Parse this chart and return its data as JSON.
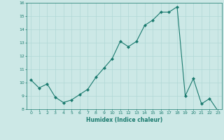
{
  "x": [
    0,
    1,
    2,
    3,
    4,
    5,
    6,
    7,
    8,
    9,
    10,
    11,
    12,
    13,
    14,
    15,
    16,
    17,
    18,
    19,
    20,
    21,
    22,
    23
  ],
  "y": [
    10.2,
    9.6,
    9.9,
    8.9,
    8.5,
    8.7,
    9.1,
    9.5,
    10.4,
    11.1,
    11.8,
    13.1,
    12.7,
    13.1,
    14.3,
    14.7,
    15.3,
    15.3,
    15.7,
    9.0,
    10.3,
    8.4,
    8.8,
    7.9
  ],
  "xlabel": "Humidex (Indice chaleur)",
  "ylim": [
    8,
    16
  ],
  "xlim": [
    -0.5,
    23.5
  ],
  "yticks": [
    8,
    9,
    10,
    11,
    12,
    13,
    14,
    15,
    16
  ],
  "xticks": [
    0,
    1,
    2,
    3,
    4,
    5,
    6,
    7,
    8,
    9,
    10,
    11,
    12,
    13,
    14,
    15,
    16,
    17,
    18,
    19,
    20,
    21,
    22,
    23
  ],
  "line_color": "#1a7a6e",
  "marker_color": "#1a7a6e",
  "bg_color": "#cce8e6",
  "grid_color": "#b0d8d5",
  "tick_label_color": "#1a7a6e",
  "xlabel_color": "#1a7a6e"
}
